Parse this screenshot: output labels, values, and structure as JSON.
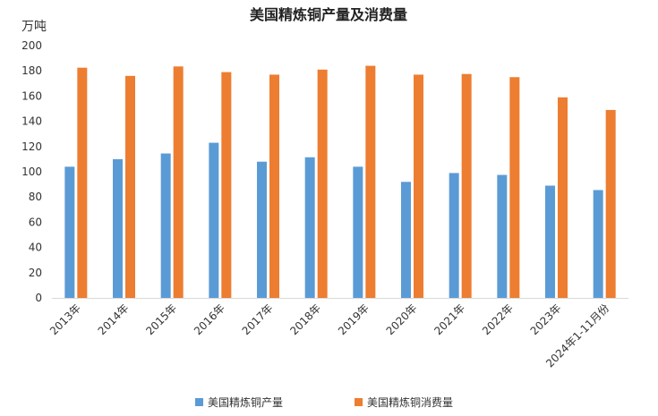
{
  "chart_data": {
    "type": "bar",
    "title": "美国精炼铜产量及消费量",
    "ylabel": "万吨",
    "ylim": [
      0,
      200
    ],
    "yticks": [
      0,
      20,
      40,
      60,
      80,
      100,
      120,
      140,
      160,
      180,
      200
    ],
    "grid": false,
    "legend_position": "bottom",
    "categories": [
      "2013年",
      "2014年",
      "2015年",
      "2016年",
      "2017年",
      "2018年",
      "2019年",
      "2020年",
      "2021年",
      "2022年",
      "2023年",
      "2024年1-11月份"
    ],
    "series": [
      {
        "name": "美国精炼铜产量",
        "color": "#5B9BD5",
        "values": [
          104,
          110,
          114.5,
          123,
          108,
          111.5,
          104,
          92,
          99,
          97.5,
          89,
          85.5
        ]
      },
      {
        "name": "美国精炼铜消费量",
        "color": "#ED7D31",
        "values": [
          182.5,
          176,
          183.5,
          179,
          177,
          181,
          184,
          177,
          177.5,
          175,
          159,
          149
        ]
      }
    ],
    "axis_color": "#D9D9D9"
  }
}
